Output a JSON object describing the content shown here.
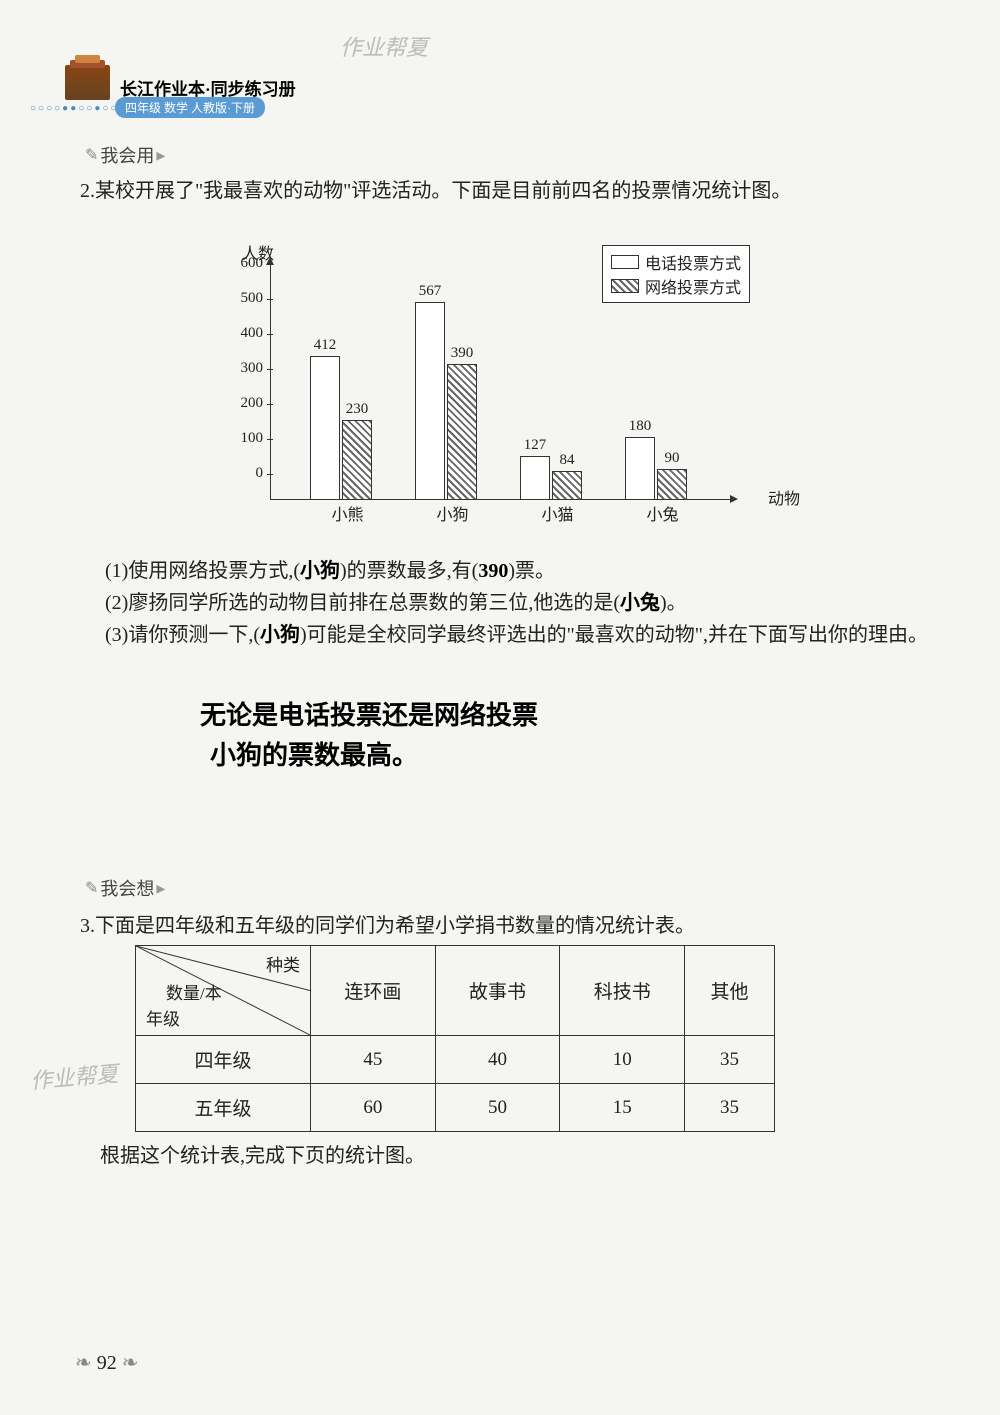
{
  "watermark": "作业帮夏",
  "header": {
    "title": "长江作业本·同步练习册",
    "subtitle": "四年级 数学 人教版·下册",
    "dots": "○○○○●●○○●○○●"
  },
  "section1": {
    "tag": "我会用",
    "q2_num": "2.",
    "q2_text": "某校开展了\"我最喜欢的动物\"评选活动。下面是目前前四名的投票情况统计图。",
    "sub1_prefix": "(1)使用网络投票方式,(",
    "sub1_ans1": "小狗",
    "sub1_mid": ")的票数最多,有(",
    "sub1_ans2": "390",
    "sub1_suffix": ")票。",
    "sub2_prefix": "(2)廖扬同学所选的动物目前排在总票数的第三位,他选的是(",
    "sub2_ans": "小兔",
    "sub2_suffix": ")。",
    "sub3_prefix": "(3)请你预测一下,(",
    "sub3_ans": "小狗",
    "sub3_suffix": ")可能是全校同学最终评选出的\"最喜欢的动物\",并在下面写出你的理由。",
    "reason_line1": "无论是电话投票还是网络投票",
    "reason_line2": "小狗的票数最高。"
  },
  "chart": {
    "y_label": "人数",
    "x_label": "动物",
    "legend1": "电话投票方式",
    "legend2": "网络投票方式",
    "ymax": 600,
    "ytick_step": 100,
    "yticks": [
      "0",
      "100",
      "200",
      "300",
      "400",
      "500",
      "600"
    ],
    "categories": [
      "小熊",
      "小狗",
      "小猫",
      "小兔"
    ],
    "phone_values": [
      412,
      567,
      127,
      180
    ],
    "net_values": [
      230,
      390,
      84,
      90
    ],
    "bar_border": "#333333",
    "hatch_color": "#666666"
  },
  "section2": {
    "tag": "我会想",
    "q3_num": "3.",
    "q3_text": "下面是四年级和五年级的同学们为希望小学捐书数量的情况统计表。",
    "after_text": "根据这个统计表,完成下页的统计图。"
  },
  "table": {
    "corner_top": "种类",
    "corner_mid": "数量/本",
    "corner_bottom": "年级",
    "columns": [
      "连环画",
      "故事书",
      "科技书",
      "其他"
    ],
    "rows": [
      {
        "label": "四年级",
        "cells": [
          "45",
          "40",
          "10",
          "35"
        ]
      },
      {
        "label": "五年级",
        "cells": [
          "60",
          "50",
          "15",
          "35"
        ]
      }
    ]
  },
  "page_number": "92"
}
